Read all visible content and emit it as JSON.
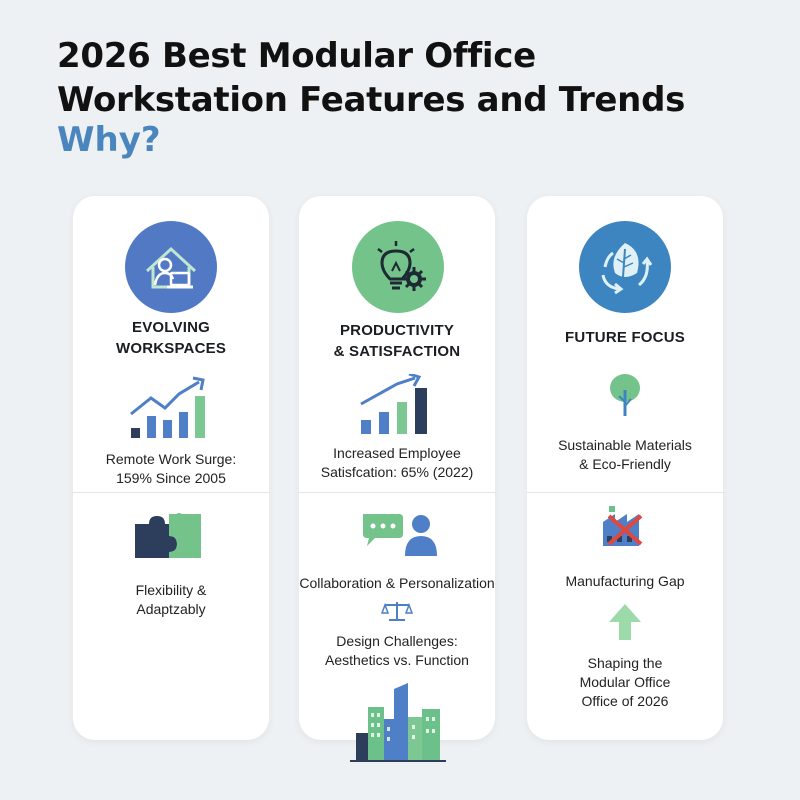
{
  "header": {
    "title_line1": "2026 Best Modular Office",
    "title_line2": "Workstation Features and Trends",
    "subtitle": "Why?"
  },
  "cards": [
    {
      "heading_line1": "EVOLVING",
      "heading_line2": "WORKSPACES",
      "stat_line1": "Remote Work Surge:",
      "stat_line2": "159% Since 2005",
      "item_line1": "Flexibility &",
      "item_line2": "Adaptzably",
      "icons": [
        "remote-worker-icon",
        "growth-chart-icon",
        "puzzle-icon"
      ]
    },
    {
      "heading_line1": "PRODUCTIVITY",
      "heading_line2": "& SATISFACTION",
      "stat_line1": "Increased Employee",
      "stat_line2": "Satisfcation: 65% (2022)",
      "item1": "Collaboration & Personalization",
      "item2_line1": "Design Challenges:",
      "item2_line2": "Aesthetics vs. Function",
      "icons": [
        "lightbulb-gear-icon",
        "bar-chart-icon",
        "chat-person-icon",
        "balance-scale-icon",
        "city-buildings-icon"
      ]
    },
    {
      "heading": "FUTURE FOCUS",
      "stat_line1": "Sustainable Materials",
      "stat_line2": "& Eco-Friendly",
      "item1": "Manufacturing Gap",
      "item2_line1": "Shaping the",
      "item2_line2": "Modular Office",
      "item2_line3": "Office of 2026",
      "icons": [
        "recycle-leaf-icon",
        "tree-icon",
        "factory-crossed-icon",
        "up-arrow-icon"
      ]
    }
  ],
  "colors": {
    "blue": "#4f7fc6",
    "green": "#6cc08a",
    "steel_blue": "#3d85c0",
    "navy": "#2c3e5c",
    "accent_blue": "#4a86bd",
    "red_cross": "#e0473e"
  }
}
